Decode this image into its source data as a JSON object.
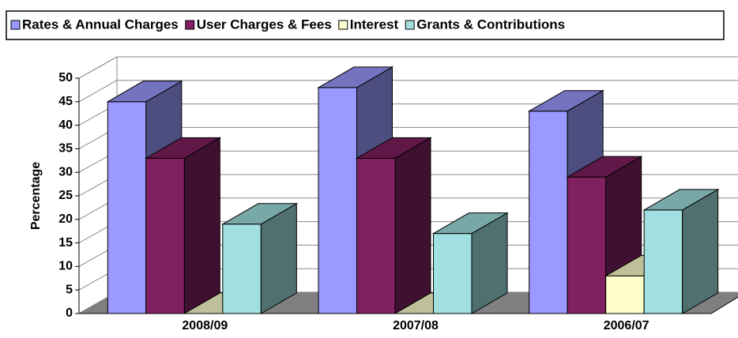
{
  "chart_data": {
    "type": "bar3d",
    "y_label": "Percentage",
    "categories": [
      "2008/09",
      "2007/08",
      "2006/07"
    ],
    "series": [
      {
        "name": "Rates & Annual Charges",
        "color": "#9999ff",
        "values": [
          45,
          48,
          43
        ]
      },
      {
        "name": "User Charges & Fees",
        "color": "#802060",
        "values": [
          33,
          33,
          29
        ]
      },
      {
        "name": "Interest",
        "color": "#ffffcc",
        "values": [
          0,
          0,
          8
        ]
      },
      {
        "name": "Grants & Contributions",
        "color": "#a0e0e0",
        "values": [
          19,
          17,
          22
        ]
      }
    ],
    "ylim": [
      0,
      50
    ],
    "yticks": [
      0,
      5,
      10,
      15,
      20,
      25,
      30,
      35,
      40,
      45,
      50
    ],
    "grid": true,
    "legend": "top"
  }
}
